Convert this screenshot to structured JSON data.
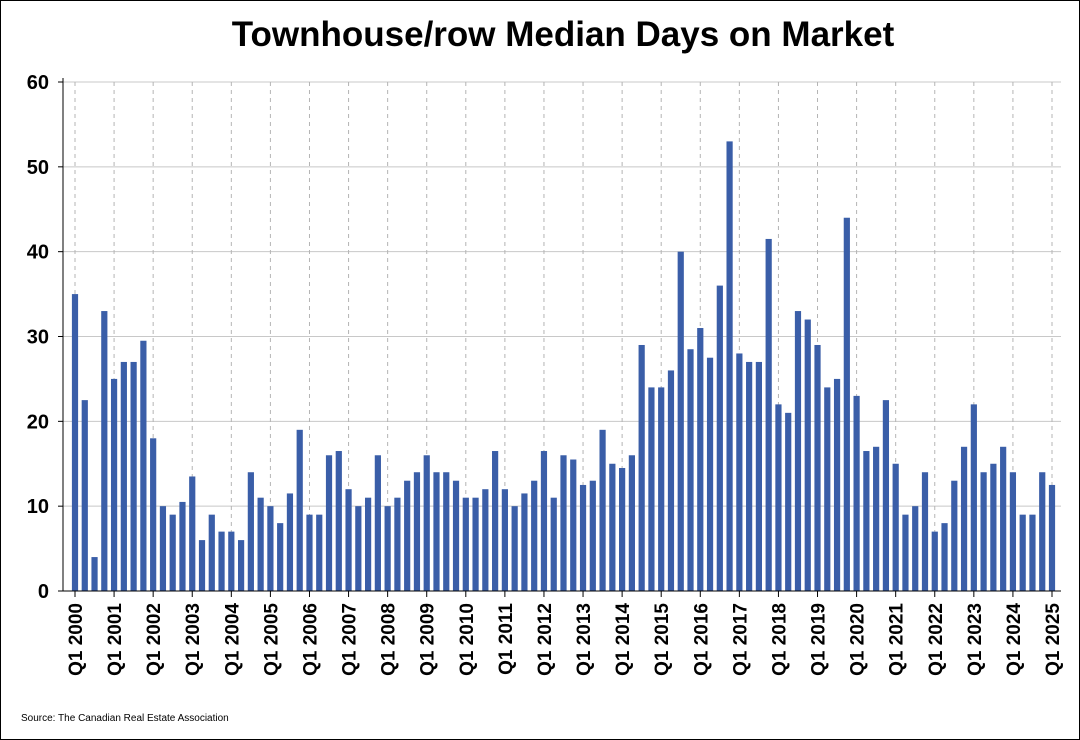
{
  "chart_data": {
    "type": "bar",
    "title": "Townhouse/row Median Days on Market",
    "source": "Source: The Canadian Real Estate Association",
    "xlabel": "",
    "ylabel": "",
    "ylim": [
      0,
      60
    ],
    "yticks": [
      0,
      10,
      20,
      30,
      40,
      50,
      60
    ],
    "grid": true,
    "bar_color": "#3a5ea8",
    "x_tick_labels": [
      "Q1 2000",
      "Q1 2001",
      "Q1 2002",
      "Q1 2003",
      "Q1 2004",
      "Q1 2005",
      "Q1 2006",
      "Q1 2007",
      "Q1 2008",
      "Q1 2009",
      "Q1 2010",
      "Q1 2011",
      "Q1 2012",
      "Q1 2013",
      "Q1 2014",
      "Q1 2015",
      "Q1 2016",
      "Q1 2017",
      "Q1 2018",
      "Q1 2019",
      "Q1 2020",
      "Q1 2021",
      "Q1 2022",
      "Q1 2023",
      "Q1 2024",
      "Q1 2025"
    ],
    "x_tick_every": 4,
    "values": [
      35,
      22.5,
      4,
      33,
      25,
      27,
      27,
      29.5,
      18,
      10,
      9,
      10.5,
      13.5,
      6,
      9,
      7,
      7,
      6,
      14,
      11,
      10,
      8,
      11.5,
      19,
      9,
      9,
      16,
      16.5,
      12,
      10,
      11,
      16,
      10,
      11,
      13,
      14,
      16,
      14,
      14,
      13,
      11,
      11,
      12,
      16.5,
      12,
      10,
      11.5,
      13,
      16.5,
      11,
      16,
      15.5,
      12.5,
      13,
      19,
      15,
      14.5,
      16,
      29,
      24,
      24,
      26,
      40,
      28.5,
      31,
      27.5,
      36,
      53,
      28,
      27,
      27,
      41.5,
      22,
      21,
      33,
      32,
      29,
      24,
      25,
      44,
      23,
      16.5,
      17,
      22.5,
      15,
      9,
      10,
      14,
      7,
      8,
      13,
      17,
      22,
      14,
      15,
      17,
      14,
      9,
      9,
      14,
      12.5
    ]
  }
}
